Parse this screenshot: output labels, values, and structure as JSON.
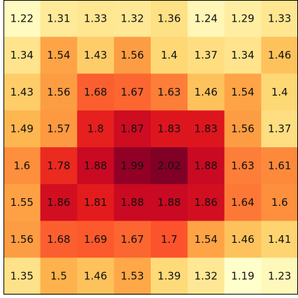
{
  "chart_data": {
    "type": "heatmap",
    "rows": 8,
    "cols": 8,
    "values": [
      [
        1.22,
        1.31,
        1.33,
        1.32,
        1.36,
        1.24,
        1.29,
        1.33
      ],
      [
        1.34,
        1.54,
        1.43,
        1.56,
        1.4,
        1.37,
        1.34,
        1.46
      ],
      [
        1.43,
        1.56,
        1.68,
        1.67,
        1.63,
        1.46,
        1.54,
        1.4
      ],
      [
        1.49,
        1.57,
        1.8,
        1.87,
        1.83,
        1.83,
        1.56,
        1.37
      ],
      [
        1.6,
        1.78,
        1.88,
        1.99,
        2.02,
        1.88,
        1.63,
        1.61
      ],
      [
        1.55,
        1.86,
        1.81,
        1.88,
        1.88,
        1.86,
        1.64,
        1.6
      ],
      [
        1.56,
        1.68,
        1.69,
        1.67,
        1.7,
        1.54,
        1.46,
        1.41
      ],
      [
        1.35,
        1.5,
        1.46,
        1.53,
        1.39,
        1.32,
        1.19,
        1.23
      ]
    ],
    "labels": [
      [
        "1.22",
        "1.31",
        "1.33",
        "1.32",
        "1.36",
        "1.24",
        "1.29",
        "1.33"
      ],
      [
        "1.34",
        "1.54",
        "1.43",
        "1.56",
        "1.4",
        "1.37",
        "1.34",
        "1.46"
      ],
      [
        "1.43",
        "1.56",
        "1.68",
        "1.67",
        "1.63",
        "1.46",
        "1.54",
        "1.4"
      ],
      [
        "1.49",
        "1.57",
        "1.8",
        "1.87",
        "1.83",
        "1.83",
        "1.56",
        "1.37"
      ],
      [
        "1.6",
        "1.78",
        "1.88",
        "1.99",
        "2.02",
        "1.88",
        "1.63",
        "1.61"
      ],
      [
        "1.55",
        "1.86",
        "1.81",
        "1.88",
        "1.88",
        "1.86",
        "1.64",
        "1.6"
      ],
      [
        "1.56",
        "1.68",
        "1.69",
        "1.67",
        "1.7",
        "1.54",
        "1.46",
        "1.41"
      ],
      [
        "1.35",
        "1.5",
        "1.46",
        "1.53",
        "1.39",
        "1.32",
        "1.19",
        "1.23"
      ]
    ],
    "colormap": "YlOrRd",
    "vmin": 1.19,
    "vmax": 2.02,
    "colors": {
      "low": "#ffffcc",
      "mid": "#fd8d3c",
      "high": "#800026",
      "text": "#111111",
      "frame": "#000000"
    },
    "grid": false,
    "legend": "none",
    "title": "",
    "xlabel": "",
    "ylabel": ""
  }
}
